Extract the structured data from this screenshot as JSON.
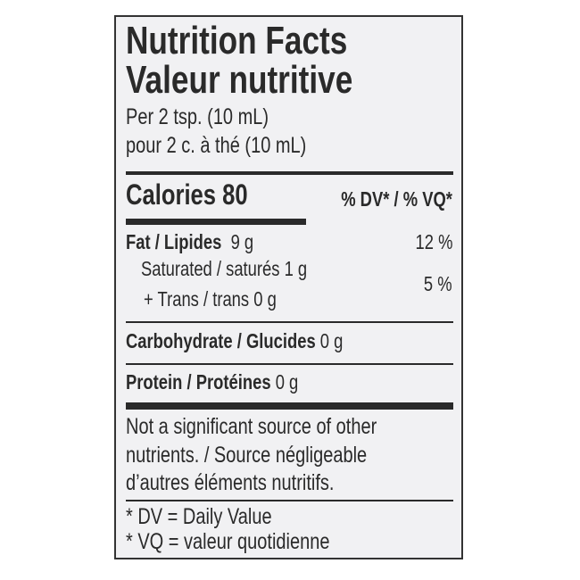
{
  "label": {
    "title_en": "Nutrition Facts",
    "title_fr": "Valeur nutritive",
    "serving_en": "Per 2 tsp. (10 mL)",
    "serving_fr": "pour 2 c. à thé (10 mL)",
    "calories_label": "Calories 80",
    "dv_header": "% DV* / % VQ*",
    "nutrients": [
      {
        "name": "Fat / Lipides",
        "amount": "9 g",
        "dv": "12 %"
      },
      {
        "name": "Saturated / saturés",
        "amount": "1 g"
      },
      {
        "name": "+ Trans / trans",
        "amount": "0 g",
        "dv": "5 %"
      },
      {
        "name": "Carbohydrate / Glucides",
        "amount": "0 g"
      },
      {
        "name": "Protein / Protéines",
        "amount": "0 g"
      }
    ],
    "note_lines": [
      "Not a significant source of other",
      "nutrients. / Source négligeable",
      "d’autres éléments nutritifs."
    ],
    "footnotes": [
      "* DV = Daily Value",
      "* VQ = valeur quotidienne"
    ]
  }
}
